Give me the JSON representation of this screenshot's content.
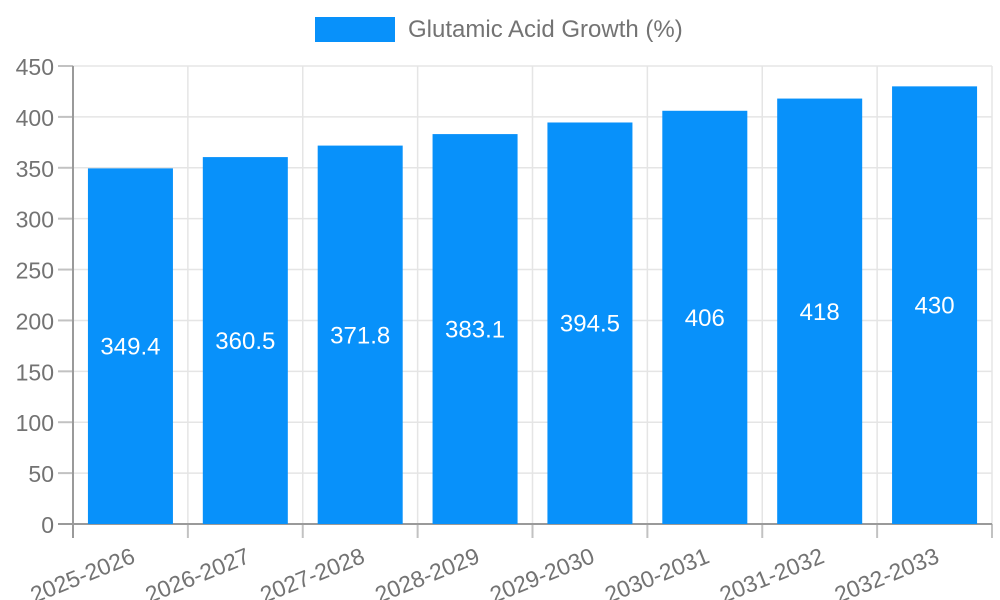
{
  "chart_data": {
    "type": "bar",
    "title": "",
    "legend": {
      "label": "Glutamic Acid Growth (%)",
      "position": "top"
    },
    "categories": [
      "2025-2026",
      "2026-2027",
      "2027-2028",
      "2028-2029",
      "2029-2030",
      "2030-2031",
      "2031-2032",
      "2032-2033"
    ],
    "series": [
      {
        "name": "Glutamic Acid Growth (%)",
        "values": [
          349.4,
          360.5,
          371.8,
          383.1,
          394.5,
          406,
          418,
          430
        ],
        "value_labels": [
          "349.4",
          "360.5",
          "371.8",
          "383.1",
          "394.5",
          "406",
          "418",
          "430"
        ]
      }
    ],
    "xlabel": "",
    "ylabel": "",
    "ylim": [
      0,
      450
    ],
    "ytick_step": 50,
    "ytick_labels": [
      "0",
      "50",
      "100",
      "150",
      "200",
      "250",
      "300",
      "350",
      "400",
      "450"
    ],
    "grid": true,
    "colors": {
      "bar": "#0891fa",
      "grid": "#e5e5e5",
      "tick": "#c2c2c2",
      "axis": "#9a9a9a",
      "text": "#737373",
      "value_label": "#ffffff"
    }
  }
}
